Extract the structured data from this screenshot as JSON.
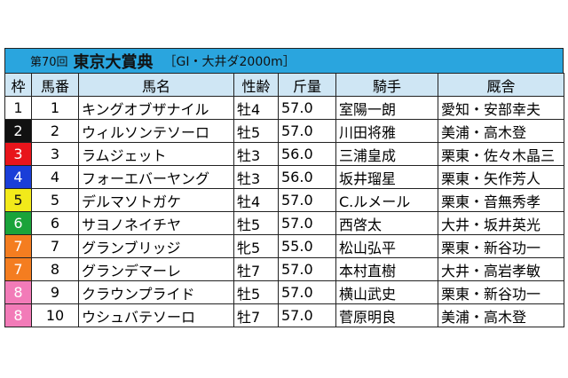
{
  "table": {
    "title": {
      "round": "第70回",
      "race": "東京大賞典",
      "info": "［GI・大井ダ2000m］"
    },
    "header": [
      "枠",
      "馬番",
      "馬名",
      "性齢",
      "斤量",
      "騎手",
      "厩舎"
    ],
    "rows": [
      [
        "1",
        "1",
        "キングオブザナイル",
        "牡4",
        "57.0",
        "室陽一朗",
        "愛知・安部幸夫"
      ],
      [
        "2",
        "2",
        "ウィルソンテソーロ",
        "牡5",
        "57.0",
        "川田将雅",
        "美浦・高木登"
      ],
      [
        "3",
        "3",
        "ラムジェット",
        "牡3",
        "56.0",
        "三浦皇成",
        "栗東・佐々木晶三"
      ],
      [
        "4",
        "4",
        "フォーエバーヤング",
        "牡3",
        "56.0",
        "坂井瑠星",
        "栗東・矢作芳人"
      ],
      [
        "5",
        "5",
        "デルマソトガケ",
        "牡4",
        "57.0",
        "C.ルメール",
        "栗東・音無秀孝"
      ],
      [
        "6",
        "6",
        "サヨノネイチヤ",
        "牡5",
        "57.0",
        "西啓太",
        "大井・坂井英光"
      ],
      [
        "7",
        "7",
        "グランブリッジ",
        "牝5",
        "55.0",
        "松山弘平",
        "栗東・新谷功一"
      ],
      [
        "7",
        "8",
        "グランデマーレ",
        "牡7",
        "57.0",
        "本村直樹",
        "大井・高岩孝敏"
      ],
      [
        "8",
        "9",
        "クラウンプライド",
        "牡5",
        "57.0",
        "横山武史",
        "栗東・新谷功一"
      ],
      [
        "8",
        "10",
        "ウシュバテソーロ",
        "牡7",
        "57.0",
        "菅原明良",
        "美浦・高木登"
      ]
    ]
  }
}
